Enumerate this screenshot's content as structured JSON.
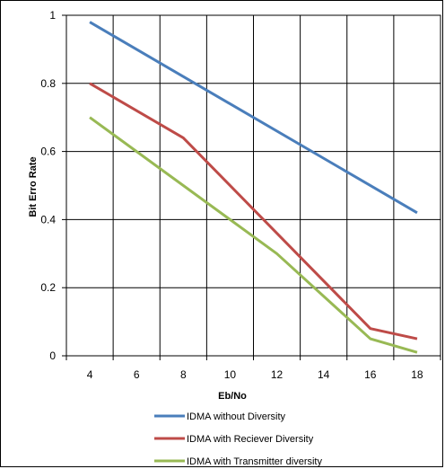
{
  "chart_data": {
    "type": "line",
    "title": "",
    "xlabel": "Eb/No",
    "ylabel": "Bit Erro Rate",
    "x": [
      4,
      8,
      12,
      16,
      18
    ],
    "xticks": [
      4,
      6,
      8,
      10,
      12,
      14,
      16,
      18
    ],
    "yticks": [
      0,
      0.2,
      0.4,
      0.6,
      0.8,
      1
    ],
    "ylim": [
      0,
      1
    ],
    "grid": true,
    "legend_position": "bottom",
    "series": [
      {
        "name": "IDMA without Diversity",
        "color": "#4a7ebb",
        "x": [
          4,
          18
        ],
        "values": [
          0.98,
          0.42
        ]
      },
      {
        "name": "IDMA with Reciever Diversity",
        "color": "#be4b48",
        "x": [
          4,
          8,
          16,
          18
        ],
        "values": [
          0.8,
          0.64,
          0.08,
          0.05
        ]
      },
      {
        "name": "IDMA with Transmitter diversity",
        "color": "#98b954",
        "x": [
          4,
          12,
          16,
          18
        ],
        "values": [
          0.7,
          0.3,
          0.05,
          0.01
        ]
      }
    ]
  }
}
